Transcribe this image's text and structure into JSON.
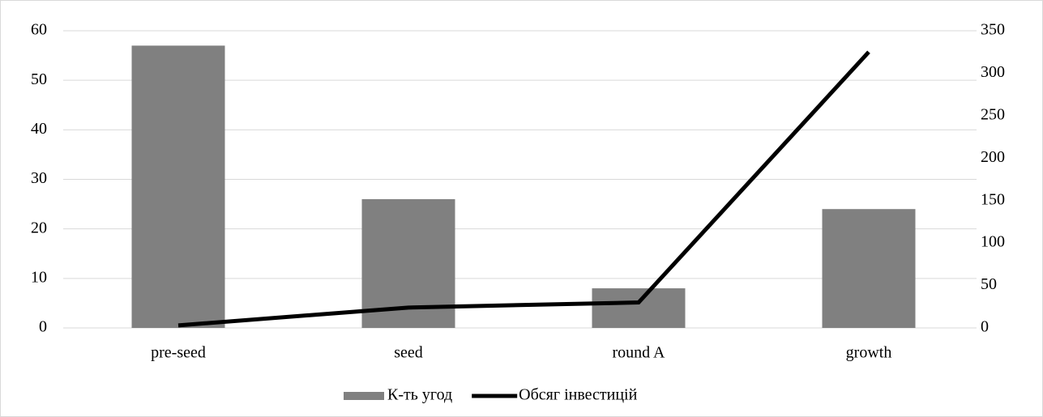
{
  "chart_data": {
    "type": "bar_line",
    "categories": [
      "pre-seed",
      "seed",
      "round A",
      "growth"
    ],
    "series": [
      {
        "name": "К-ть угод",
        "type": "bar",
        "color": "#808080",
        "values": [
          57,
          26,
          8,
          24
        ]
      },
      {
        "name": "Обсяг інвестицій",
        "type": "line",
        "color": "#000000",
        "axis": "y2",
        "values": [
          3,
          24,
          30,
          325
        ]
      }
    ],
    "ylim": [
      0,
      60
    ],
    "yticks": [
      0,
      10,
      20,
      30,
      40,
      50,
      60
    ],
    "y2lim": [
      0,
      350
    ],
    "y2ticks": [
      0,
      50,
      100,
      150,
      200,
      250,
      300,
      350
    ],
    "grid": true,
    "legend": "bottom"
  }
}
